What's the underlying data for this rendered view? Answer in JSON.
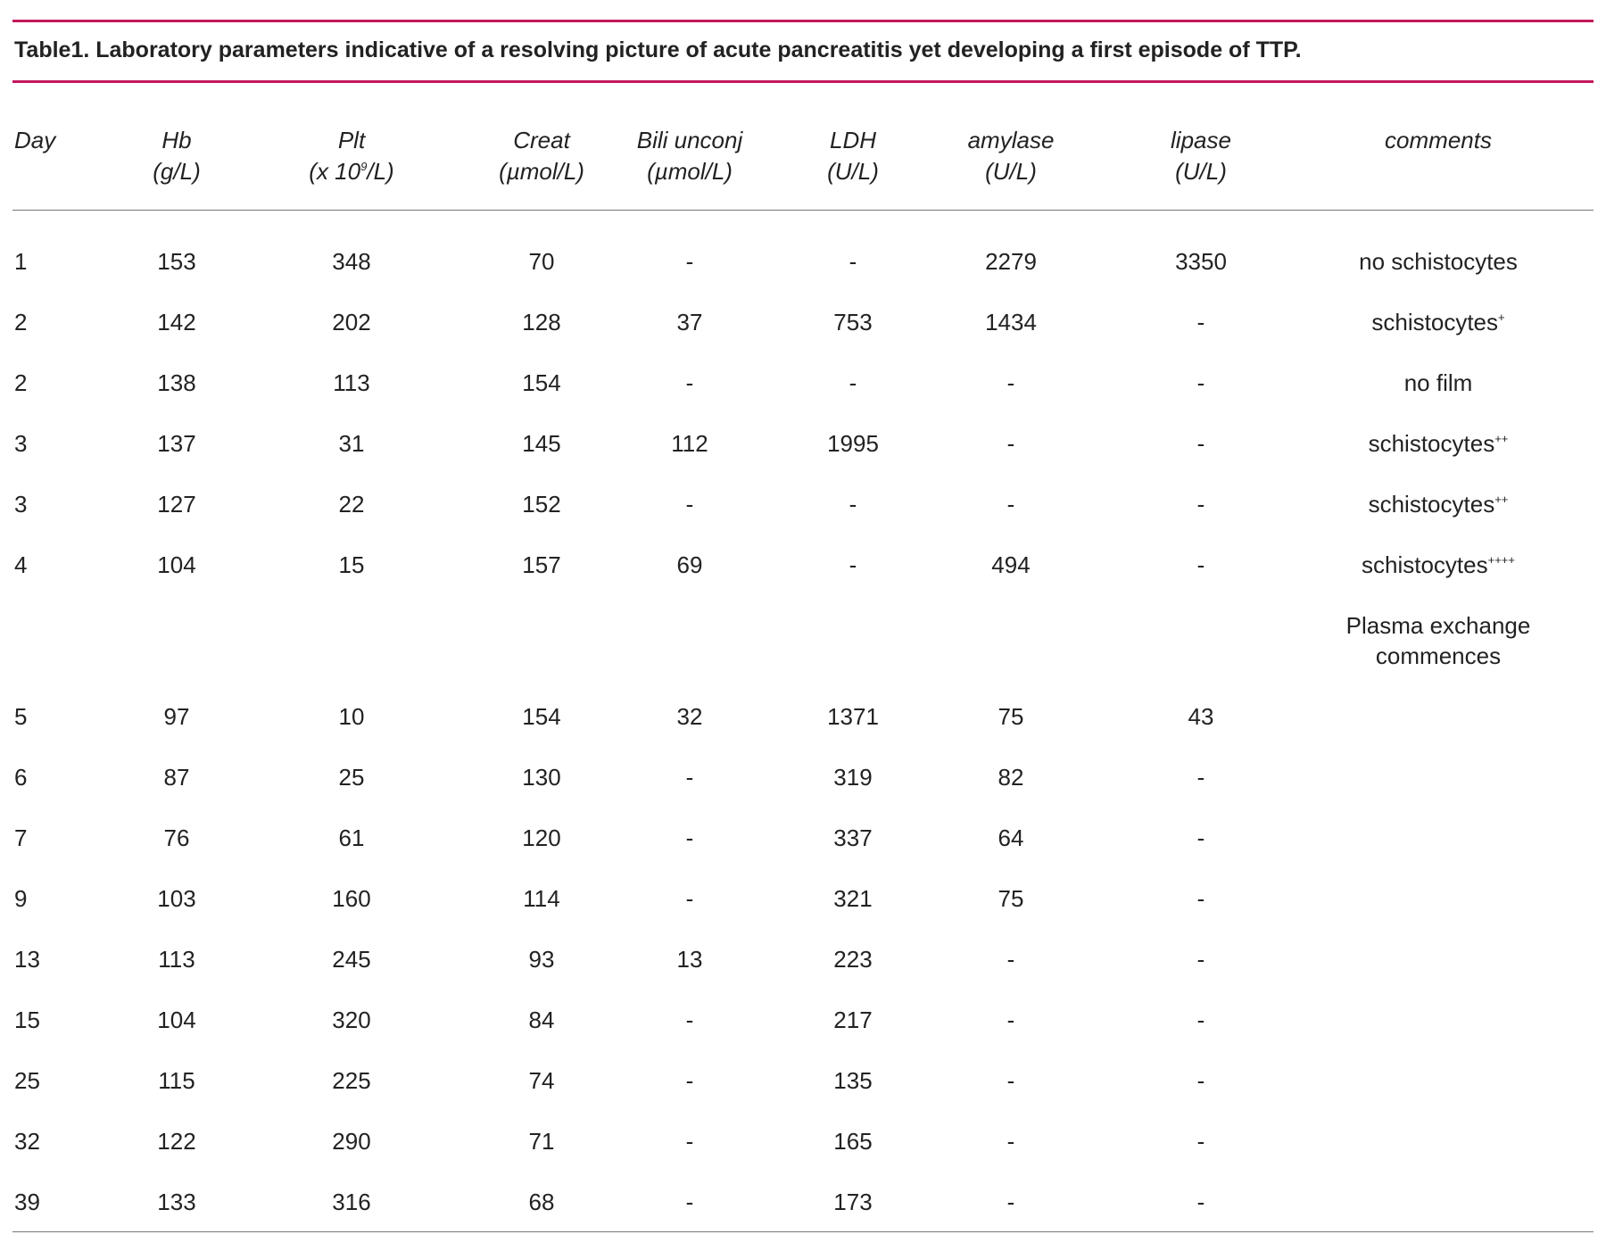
{
  "title": "Table1. Laboratory parameters indicative of a resolving picture of acute pancreatitis yet developing a first episode of TTP.",
  "table": {
    "columns": [
      {
        "name": "Day"
      },
      {
        "name": "Hb",
        "unit": "(g/L)"
      },
      {
        "name": "Plt",
        "unit": "(x 10",
        "unit_sup": "9",
        "unit_end": "/L)"
      },
      {
        "name": "Creat",
        "unit": "(µmol/L)"
      },
      {
        "name": "Bili unconj",
        "unit": "(µmol/L)"
      },
      {
        "name": "LDH",
        "unit": "(U/L)"
      },
      {
        "name": "amylase",
        "unit": "(U/L)"
      },
      {
        "name": "lipase",
        "unit": "(U/L)"
      },
      {
        "name": "comments"
      }
    ],
    "rows": [
      [
        1,
        153,
        348,
        70,
        "-",
        "-",
        2279,
        3350,
        {
          "text": "no schistocytes"
        }
      ],
      [
        2,
        142,
        202,
        128,
        37,
        753,
        1434,
        "-",
        {
          "text": "schistocytes",
          "sup": "+"
        }
      ],
      [
        2,
        138,
        113,
        154,
        "-",
        "-",
        "-",
        "-",
        {
          "text": "no film"
        }
      ],
      [
        3,
        137,
        31,
        145,
        112,
        1995,
        "-",
        "-",
        {
          "text": "schistocytes",
          "sup": "++"
        }
      ],
      [
        3,
        127,
        22,
        152,
        "-",
        "-",
        "-",
        "-",
        {
          "text": "schistocytes",
          "sup": "++"
        }
      ],
      [
        4,
        104,
        15,
        157,
        69,
        "-",
        494,
        "-",
        {
          "text": "schistocytes",
          "sup": "++++"
        }
      ],
      {
        "note": [
          "Plasma exchange",
          "commences"
        ]
      },
      [
        5,
        97,
        10,
        154,
        32,
        1371,
        75,
        43
      ],
      [
        6,
        87,
        25,
        130,
        "-",
        319,
        82,
        "-"
      ],
      [
        7,
        76,
        61,
        120,
        "-",
        337,
        64,
        "-"
      ],
      [
        9,
        103,
        160,
        114,
        "-",
        321,
        75,
        "-"
      ],
      [
        13,
        113,
        245,
        93,
        13,
        223,
        "-",
        "-"
      ],
      [
        15,
        104,
        320,
        84,
        "-",
        217,
        "-",
        "-"
      ],
      [
        25,
        115,
        225,
        74,
        "-",
        135,
        "-",
        "-"
      ],
      [
        32,
        122,
        290,
        71,
        "-",
        165,
        "-",
        "-"
      ],
      [
        39,
        133,
        316,
        68,
        "-",
        173,
        "-",
        "-"
      ]
    ]
  }
}
